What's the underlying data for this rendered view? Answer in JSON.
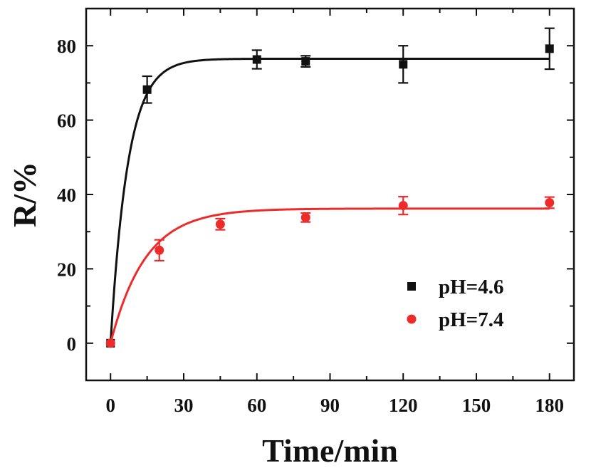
{
  "chart_data": {
    "type": "scatter",
    "xlabel": "Time/min",
    "ylabel": "R/%",
    "xlim": [
      -10,
      190
    ],
    "ylim": [
      -10,
      90
    ],
    "xticks": [
      0,
      30,
      60,
      90,
      120,
      150,
      180
    ],
    "yticks": [
      0,
      20,
      40,
      60,
      80
    ],
    "xtick_labels": [
      "0",
      "30",
      "60",
      "90",
      "120",
      "150",
      "180"
    ],
    "ytick_labels": [
      "0",
      "20",
      "40",
      "60",
      "80"
    ],
    "grid": false,
    "legend_position": "bottom-right",
    "series": [
      {
        "name": "pH=4.6",
        "color": "#111111",
        "marker": "square",
        "x": [
          0,
          15,
          60,
          80,
          120,
          180
        ],
        "y": [
          0,
          68.2,
          76.3,
          75.8,
          75.0,
          79.2
        ],
        "yerr": [
          0,
          3.6,
          2.5,
          1.5,
          5.0,
          5.5
        ],
        "fit": {
          "plateau": 76.5,
          "rate": 0.14
        }
      },
      {
        "name": "pH=7.4",
        "color": "#ee2b2b",
        "marker": "circle",
        "x": [
          0,
          20,
          45,
          80,
          120,
          180
        ],
        "y": [
          0,
          25.0,
          32.0,
          33.8,
          37.0,
          37.8
        ],
        "yerr": [
          0,
          2.8,
          1.5,
          1.2,
          2.4,
          1.5
        ],
        "fit": {
          "plateau": 36.2,
          "rate": 0.07
        }
      }
    ]
  }
}
